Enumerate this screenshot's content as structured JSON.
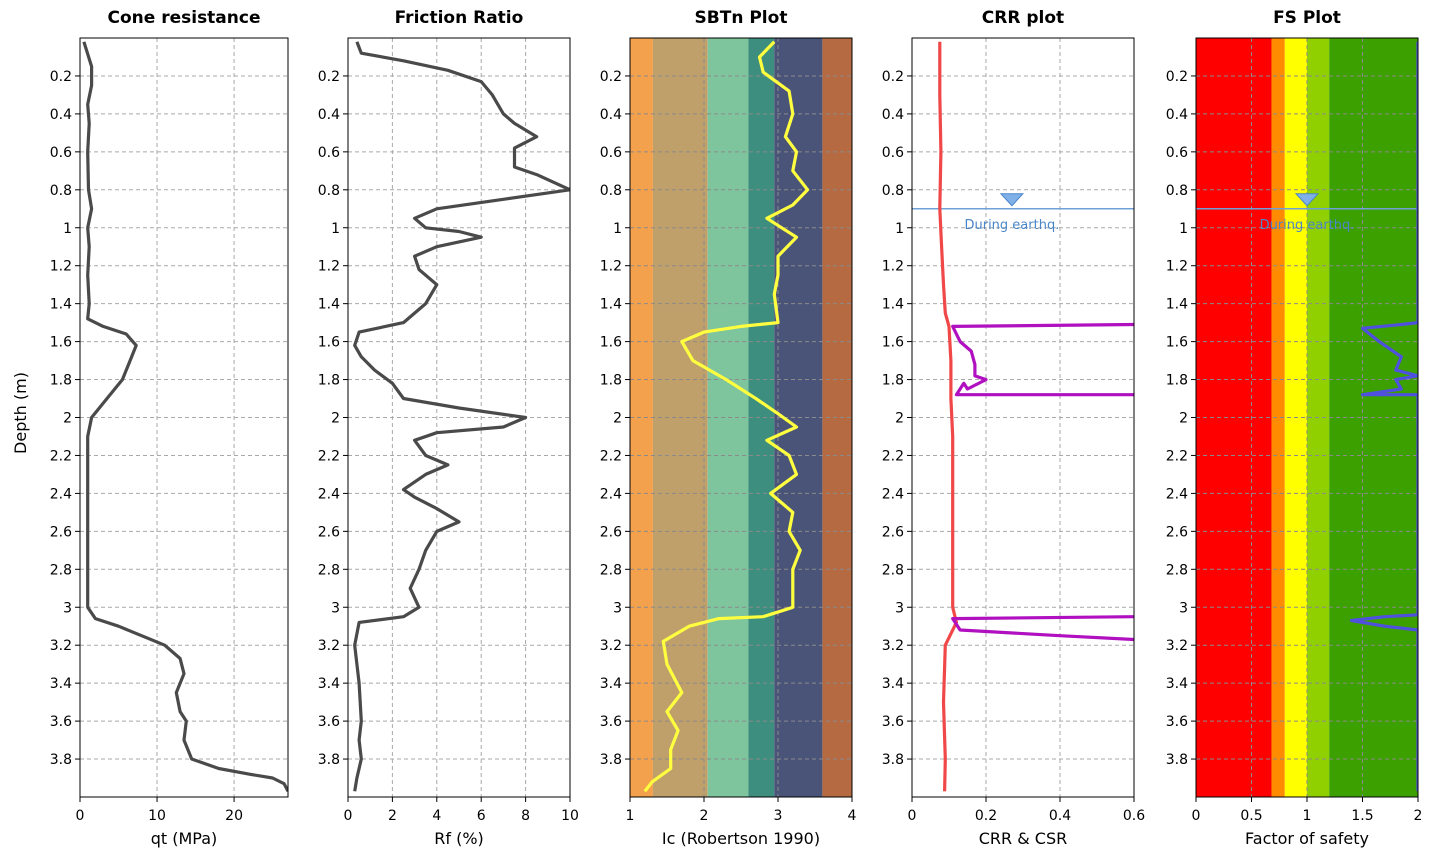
{
  "shared": {
    "ylabel": "Depth (m)",
    "ylim": [
      0,
      4
    ],
    "yticks": [
      "0.2",
      "0.4",
      "0.6",
      "0.8",
      "1",
      "1.2",
      "1.4",
      "1.6",
      "1.8",
      "2",
      "2.2",
      "2.4",
      "2.6",
      "2.8",
      "3",
      "3.2",
      "3.4",
      "3.6",
      "3.8"
    ],
    "water_table": {
      "depth": 0.9,
      "label": "During earthq."
    }
  },
  "chart_data": [
    {
      "type": "line",
      "title": "Cone resistance",
      "xlabel": "qt (MPa)",
      "xlim": [
        0,
        27
      ],
      "xticks": [
        {
          "v": 0,
          "t": "0"
        },
        {
          "v": 10,
          "t": "10"
        },
        {
          "v": 20,
          "t": "20"
        }
      ],
      "grid": true,
      "series": [
        {
          "color": "#4A4A4A",
          "points": [
            [
              0.5,
              0.02
            ],
            [
              1.5,
              0.15
            ],
            [
              1.5,
              0.25
            ],
            [
              1.0,
              0.35
            ],
            [
              1.2,
              0.45
            ],
            [
              1.0,
              0.6
            ],
            [
              1.1,
              0.8
            ],
            [
              1.5,
              0.9
            ],
            [
              1.0,
              1.0
            ],
            [
              1.2,
              1.1
            ],
            [
              1.0,
              1.25
            ],
            [
              1.2,
              1.4
            ],
            [
              1.0,
              1.48
            ],
            [
              3.0,
              1.52
            ],
            [
              6.0,
              1.56
            ],
            [
              7.3,
              1.62
            ],
            [
              6.5,
              1.7
            ],
            [
              5.5,
              1.8
            ],
            [
              3.5,
              1.9
            ],
            [
              1.5,
              2.0
            ],
            [
              1.0,
              2.1
            ],
            [
              1.0,
              2.5
            ],
            [
              1.0,
              3.0
            ],
            [
              2.0,
              3.06
            ],
            [
              5.0,
              3.1
            ],
            [
              8.0,
              3.15
            ],
            [
              11.0,
              3.2
            ],
            [
              13.0,
              3.27
            ],
            [
              13.5,
              3.35
            ],
            [
              12.5,
              3.45
            ],
            [
              13.0,
              3.55
            ],
            [
              13.8,
              3.6
            ],
            [
              13.5,
              3.7
            ],
            [
              14.5,
              3.8
            ],
            [
              18.0,
              3.85
            ],
            [
              22.0,
              3.88
            ],
            [
              25.0,
              3.9
            ],
            [
              26.5,
              3.93
            ],
            [
              27.0,
              3.97
            ]
          ]
        }
      ]
    },
    {
      "type": "line",
      "title": "Friction Ratio",
      "xlabel": "Rf (%)",
      "xlim": [
        0,
        10
      ],
      "xticks": [
        {
          "v": 0,
          "t": "0"
        },
        {
          "v": 2,
          "t": "2"
        },
        {
          "v": 4,
          "t": "4"
        },
        {
          "v": 6,
          "t": "6"
        },
        {
          "v": 8,
          "t": "8"
        },
        {
          "v": 10,
          "t": "10"
        }
      ],
      "grid": true,
      "series": [
        {
          "color": "#4A4A4A",
          "points": [
            [
              0.4,
              0.02
            ],
            [
              0.6,
              0.08
            ],
            [
              2.5,
              0.12
            ],
            [
              4.5,
              0.17
            ],
            [
              6.0,
              0.23
            ],
            [
              6.5,
              0.3
            ],
            [
              7.0,
              0.4
            ],
            [
              7.5,
              0.45
            ],
            [
              8.5,
              0.52
            ],
            [
              7.5,
              0.58
            ],
            [
              7.5,
              0.68
            ],
            [
              8.5,
              0.72
            ],
            [
              10.0,
              0.8
            ],
            [
              7.0,
              0.85
            ],
            [
              4.0,
              0.9
            ],
            [
              3.0,
              0.95
            ],
            [
              3.5,
              1.0
            ],
            [
              5.0,
              1.02
            ],
            [
              6.0,
              1.05
            ],
            [
              4.0,
              1.1
            ],
            [
              3.0,
              1.15
            ],
            [
              3.2,
              1.22
            ],
            [
              4.0,
              1.3
            ],
            [
              3.5,
              1.4
            ],
            [
              3.0,
              1.45
            ],
            [
              2.5,
              1.5
            ],
            [
              0.5,
              1.55
            ],
            [
              0.3,
              1.62
            ],
            [
              0.6,
              1.68
            ],
            [
              1.2,
              1.75
            ],
            [
              2.0,
              1.82
            ],
            [
              2.5,
              1.9
            ],
            [
              5.0,
              1.95
            ],
            [
              8.0,
              2.0
            ],
            [
              7.0,
              2.05
            ],
            [
              4.0,
              2.08
            ],
            [
              3.0,
              2.12
            ],
            [
              3.5,
              2.2
            ],
            [
              4.5,
              2.25
            ],
            [
              3.5,
              2.3
            ],
            [
              2.5,
              2.38
            ],
            [
              3.0,
              2.42
            ],
            [
              4.0,
              2.48
            ],
            [
              5.0,
              2.55
            ],
            [
              4.0,
              2.6
            ],
            [
              3.5,
              2.7
            ],
            [
              3.2,
              2.8
            ],
            [
              2.8,
              2.9
            ],
            [
              3.2,
              3.0
            ],
            [
              2.5,
              3.05
            ],
            [
              0.5,
              3.08
            ],
            [
              0.3,
              3.2
            ],
            [
              0.5,
              3.4
            ],
            [
              0.6,
              3.6
            ],
            [
              0.5,
              3.7
            ],
            [
              0.6,
              3.8
            ],
            [
              0.4,
              3.9
            ],
            [
              0.3,
              3.97
            ]
          ]
        }
      ]
    },
    {
      "type": "line",
      "title": "SBTn Plot",
      "xlabel": "Ic (Robertson 1990)",
      "xlim": [
        1,
        4
      ],
      "xticks": [
        {
          "v": 1,
          "t": "1"
        },
        {
          "v": 2,
          "t": "2"
        },
        {
          "v": 3,
          "t": "3"
        },
        {
          "v": 4,
          "t": "4"
        }
      ],
      "grid": true,
      "bands": [
        {
          "from": 1.0,
          "to": 1.31,
          "color": "#F4A14E"
        },
        {
          "from": 1.31,
          "to": 2.05,
          "color": "#C0A06A"
        },
        {
          "from": 2.05,
          "to": 2.6,
          "color": "#7EC59E"
        },
        {
          "from": 2.6,
          "to": 2.95,
          "color": "#3D8E7F"
        },
        {
          "from": 2.95,
          "to": 3.6,
          "color": "#4A5478"
        },
        {
          "from": 3.6,
          "to": 4.0,
          "color": "#B56A42"
        }
      ],
      "series": [
        {
          "color": "#FFFF40",
          "points": [
            [
              2.95,
              0.02
            ],
            [
              2.75,
              0.1
            ],
            [
              2.8,
              0.18
            ],
            [
              3.15,
              0.28
            ],
            [
              3.2,
              0.4
            ],
            [
              3.1,
              0.52
            ],
            [
              3.25,
              0.6
            ],
            [
              3.2,
              0.7
            ],
            [
              3.4,
              0.8
            ],
            [
              3.2,
              0.88
            ],
            [
              2.85,
              0.95
            ],
            [
              3.05,
              1.0
            ],
            [
              3.25,
              1.05
            ],
            [
              3.0,
              1.15
            ],
            [
              3.0,
              1.25
            ],
            [
              2.95,
              1.35
            ],
            [
              3.0,
              1.5
            ],
            [
              2.5,
              1.52
            ],
            [
              2.0,
              1.55
            ],
            [
              1.7,
              1.6
            ],
            [
              1.85,
              1.7
            ],
            [
              2.3,
              1.8
            ],
            [
              2.7,
              1.9
            ],
            [
              3.0,
              1.98
            ],
            [
              3.25,
              2.05
            ],
            [
              2.85,
              2.12
            ],
            [
              3.15,
              2.2
            ],
            [
              3.25,
              2.3
            ],
            [
              2.9,
              2.4
            ],
            [
              3.2,
              2.5
            ],
            [
              3.15,
              2.6
            ],
            [
              3.3,
              2.7
            ],
            [
              3.2,
              2.8
            ],
            [
              3.2,
              3.0
            ],
            [
              2.8,
              3.05
            ],
            [
              2.2,
              3.06
            ],
            [
              1.8,
              3.1
            ],
            [
              1.45,
              3.18
            ],
            [
              1.5,
              3.3
            ],
            [
              1.7,
              3.45
            ],
            [
              1.5,
              3.55
            ],
            [
              1.65,
              3.65
            ],
            [
              1.55,
              3.75
            ],
            [
              1.55,
              3.85
            ],
            [
              1.3,
              3.92
            ],
            [
              1.2,
              3.97
            ]
          ]
        }
      ]
    },
    {
      "type": "line",
      "title": "CRR plot",
      "xlabel": "CRR & CSR",
      "xlim": [
        0,
        0.6
      ],
      "xticks": [
        {
          "v": 0,
          "t": "0"
        },
        {
          "v": 0.2,
          "t": "0.2"
        },
        {
          "v": 0.4,
          "t": "0.4"
        },
        {
          "v": 0.6,
          "t": "0.6"
        }
      ],
      "grid": true,
      "series": [
        {
          "name": "CSR",
          "color": "#F04848",
          "points": [
            [
              0.075,
              0.02
            ],
            [
              0.075,
              0.3
            ],
            [
              0.078,
              0.6
            ],
            [
              0.075,
              0.9
            ],
            [
              0.08,
              1.1
            ],
            [
              0.085,
              1.3
            ],
            [
              0.09,
              1.45
            ],
            [
              0.1,
              1.52
            ],
            [
              0.105,
              1.7
            ],
            [
              0.105,
              1.9
            ],
            [
              0.11,
              2.1
            ],
            [
              0.11,
              2.5
            ],
            [
              0.11,
              3.0
            ],
            [
              0.12,
              3.08
            ],
            [
              0.09,
              3.2
            ],
            [
              0.085,
              3.5
            ],
            [
              0.09,
              3.8
            ],
            [
              0.088,
              3.97
            ]
          ]
        },
        {
          "name": "CRR",
          "color": "#B010C0",
          "points": [
            [
              0.6,
              1.51
            ],
            [
              0.11,
              1.52
            ],
            [
              0.13,
              1.6
            ],
            [
              0.16,
              1.65
            ],
            [
              0.17,
              1.72
            ],
            [
              0.17,
              1.78
            ],
            [
              0.2,
              1.8
            ],
            [
              0.15,
              1.85
            ],
            [
              0.14,
              1.82
            ],
            [
              0.12,
              1.88
            ],
            [
              0.6,
              1.88
            ]
          ]
        },
        {
          "name": "CRR",
          "color": "#B010C0",
          "points": [
            [
              0.6,
              3.05
            ],
            [
              0.11,
              3.06
            ],
            [
              0.13,
              3.12
            ],
            [
              0.4,
              3.15
            ],
            [
              0.6,
              3.17
            ]
          ]
        }
      ]
    },
    {
      "type": "line",
      "title": "FS Plot",
      "xlabel": "Factor of safety",
      "xlim": [
        0,
        2
      ],
      "xticks": [
        {
          "v": 0,
          "t": "0"
        },
        {
          "v": 0.5,
          "t": "0.5"
        },
        {
          "v": 1,
          "t": "1"
        },
        {
          "v": 1.5,
          "t": "1.5"
        },
        {
          "v": 2,
          "t": "2"
        }
      ],
      "grid": true,
      "bands": [
        {
          "from": 0.0,
          "to": 0.68,
          "color": "#FF0000"
        },
        {
          "from": 0.68,
          "to": 0.8,
          "color": "#FF8C00"
        },
        {
          "from": 0.8,
          "to": 1.0,
          "color": "#FFFF00"
        },
        {
          "from": 1.0,
          "to": 1.2,
          "color": "#90D000"
        },
        {
          "from": 1.2,
          "to": 2.0,
          "color": "#3CA000"
        }
      ],
      "series": [
        {
          "name": "FS",
          "color": "#5050E0",
          "points": [
            [
              2.0,
              0.02
            ],
            [
              2.0,
              1.5
            ],
            [
              1.85,
              1.51
            ],
            [
              1.5,
              1.53
            ],
            [
              1.65,
              1.6
            ],
            [
              1.85,
              1.68
            ],
            [
              1.8,
              1.75
            ],
            [
              2.0,
              1.78
            ],
            [
              1.8,
              1.8
            ],
            [
              1.85,
              1.85
            ],
            [
              1.5,
              1.88
            ],
            [
              2.0,
              1.88
            ],
            [
              2.0,
              3.04
            ],
            [
              1.7,
              3.05
            ],
            [
              1.4,
              3.07
            ],
            [
              1.7,
              3.1
            ],
            [
              2.0,
              3.12
            ],
            [
              2.0,
              3.97
            ]
          ]
        }
      ]
    }
  ]
}
